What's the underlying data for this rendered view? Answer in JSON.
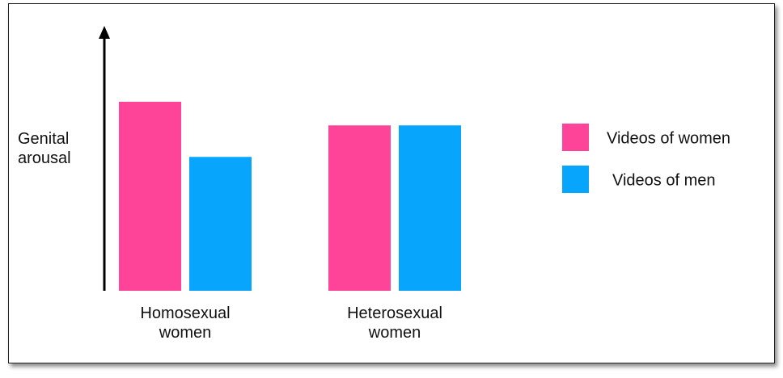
{
  "chart_data": {
    "type": "bar",
    "y_label": "Genital arousal",
    "categories": [
      "Homosexual women",
      "Heterosexual women"
    ],
    "series": [
      {
        "name": "Videos of women",
        "color": "#fd4499",
        "values": [
          72,
          63
        ]
      },
      {
        "name": "Videos of men",
        "color": "#08a5fc",
        "values": [
          51,
          63
        ]
      }
    ],
    "ylim": [
      0,
      100
    ]
  }
}
